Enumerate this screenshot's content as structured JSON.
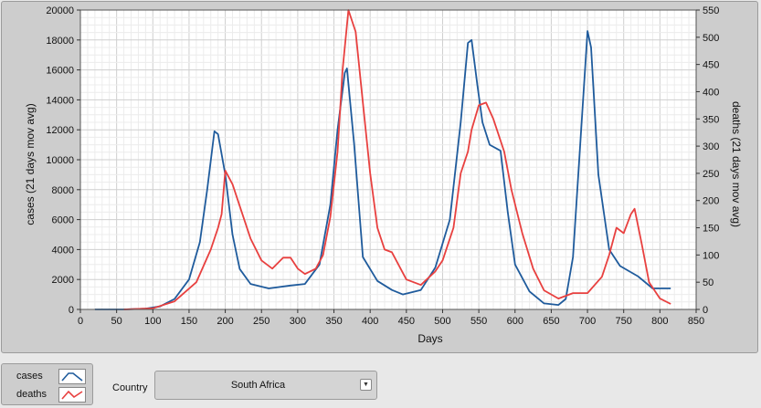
{
  "chart_data": {
    "type": "line",
    "xlabel": "Days",
    "ylabel_left": "cases  (21 days mov avg)",
    "ylabel_right": "deaths  (21 days mov avg)",
    "xlim": [
      0,
      850
    ],
    "ylim_left": [
      0,
      20000
    ],
    "ylim_right": [
      0,
      550
    ],
    "x_ticks": [
      0,
      50,
      100,
      150,
      200,
      250,
      300,
      350,
      400,
      450,
      500,
      550,
      600,
      650,
      700,
      750,
      800,
      850
    ],
    "y_left_ticks": [
      0,
      2000,
      4000,
      6000,
      8000,
      10000,
      12000,
      14000,
      16000,
      18000,
      20000
    ],
    "y_right_ticks": [
      0,
      50,
      100,
      150,
      200,
      250,
      300,
      350,
      400,
      450,
      500,
      550
    ],
    "grid": true,
    "series": [
      {
        "name": "cases",
        "axis": "left",
        "color": "#1f5b9c",
        "points": [
          [
            20,
            0
          ],
          [
            60,
            0
          ],
          [
            90,
            50
          ],
          [
            110,
            200
          ],
          [
            130,
            700
          ],
          [
            150,
            2000
          ],
          [
            165,
            4500
          ],
          [
            175,
            8000
          ],
          [
            185,
            11900
          ],
          [
            190,
            11700
          ],
          [
            200,
            9000
          ],
          [
            210,
            5000
          ],
          [
            220,
            2700
          ],
          [
            235,
            1700
          ],
          [
            260,
            1400
          ],
          [
            290,
            1600
          ],
          [
            310,
            1700
          ],
          [
            330,
            3000
          ],
          [
            345,
            7000
          ],
          [
            355,
            12000
          ],
          [
            365,
            15800
          ],
          [
            368,
            16100
          ],
          [
            378,
            11000
          ],
          [
            390,
            3500
          ],
          [
            410,
            1900
          ],
          [
            430,
            1300
          ],
          [
            445,
            1000
          ],
          [
            470,
            1300
          ],
          [
            490,
            2800
          ],
          [
            510,
            6000
          ],
          [
            525,
            12500
          ],
          [
            535,
            17800
          ],
          [
            540,
            18000
          ],
          [
            548,
            15000
          ],
          [
            555,
            12500
          ],
          [
            565,
            11000
          ],
          [
            580,
            10600
          ],
          [
            590,
            6500
          ],
          [
            600,
            3000
          ],
          [
            620,
            1200
          ],
          [
            640,
            400
          ],
          [
            660,
            300
          ],
          [
            670,
            700
          ],
          [
            680,
            3500
          ],
          [
            690,
            11000
          ],
          [
            700,
            18600
          ],
          [
            705,
            17500
          ],
          [
            715,
            9000
          ],
          [
            730,
            4000
          ],
          [
            745,
            2900
          ],
          [
            770,
            2200
          ],
          [
            790,
            1400
          ],
          [
            800,
            1400
          ],
          [
            815,
            1400
          ]
        ]
      },
      {
        "name": "deaths",
        "axis": "right",
        "color": "#e8403f",
        "points": [
          [
            60,
            0
          ],
          [
            100,
            2
          ],
          [
            130,
            15
          ],
          [
            160,
            50
          ],
          [
            180,
            110
          ],
          [
            190,
            150
          ],
          [
            195,
            175
          ],
          [
            200,
            255
          ],
          [
            210,
            230
          ],
          [
            220,
            190
          ],
          [
            235,
            130
          ],
          [
            250,
            90
          ],
          [
            265,
            75
          ],
          [
            280,
            95
          ],
          [
            290,
            95
          ],
          [
            300,
            75
          ],
          [
            310,
            65
          ],
          [
            325,
            75
          ],
          [
            335,
            100
          ],
          [
            345,
            170
          ],
          [
            355,
            290
          ],
          [
            362,
            440
          ],
          [
            370,
            550
          ],
          [
            380,
            510
          ],
          [
            390,
            380
          ],
          [
            400,
            250
          ],
          [
            410,
            150
          ],
          [
            420,
            110
          ],
          [
            430,
            105
          ],
          [
            440,
            80
          ],
          [
            450,
            55
          ],
          [
            470,
            45
          ],
          [
            490,
            70
          ],
          [
            500,
            90
          ],
          [
            515,
            150
          ],
          [
            525,
            250
          ],
          [
            535,
            290
          ],
          [
            540,
            330
          ],
          [
            550,
            375
          ],
          [
            560,
            380
          ],
          [
            570,
            350
          ],
          [
            585,
            290
          ],
          [
            595,
            220
          ],
          [
            610,
            140
          ],
          [
            625,
            75
          ],
          [
            640,
            35
          ],
          [
            660,
            20
          ],
          [
            680,
            30
          ],
          [
            700,
            30
          ],
          [
            720,
            60
          ],
          [
            730,
            100
          ],
          [
            740,
            150
          ],
          [
            750,
            140
          ],
          [
            760,
            175
          ],
          [
            765,
            185
          ],
          [
            775,
            120
          ],
          [
            785,
            50
          ],
          [
            800,
            20
          ],
          [
            815,
            10
          ]
        ]
      }
    ]
  },
  "legend": {
    "items": [
      {
        "label": "cases",
        "color": "#1f5b9c"
      },
      {
        "label": "deaths",
        "color": "#e8403f"
      }
    ]
  },
  "country": {
    "label": "Country",
    "value": "South Africa"
  }
}
